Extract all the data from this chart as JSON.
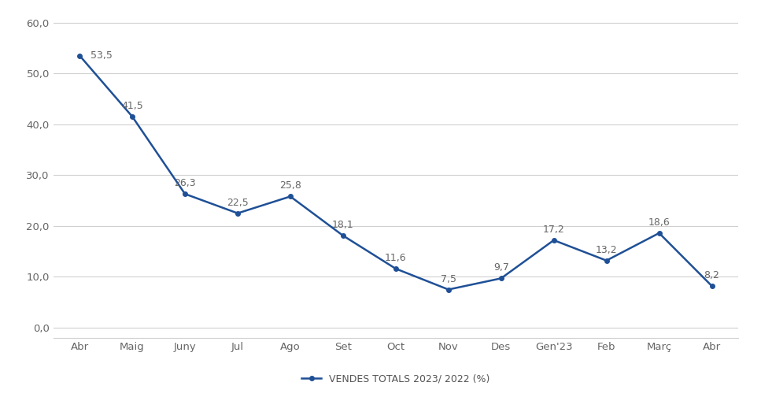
{
  "x_labels": [
    "Abr",
    "Maig",
    "Juny",
    "Jul",
    "Ago",
    "Set",
    "Oct",
    "Nov",
    "Des",
    "Gen'23",
    "Feb",
    "Març",
    "Abr"
  ],
  "y_values": [
    53.5,
    41.5,
    26.3,
    22.5,
    25.8,
    18.1,
    11.6,
    7.5,
    9.7,
    17.2,
    13.2,
    18.6,
    8.2
  ],
  "label_texts": [
    "53,5",
    "41,5",
    "26,3",
    "22,5",
    "25,8",
    "18,1",
    "11,6",
    "7,5",
    "9,7",
    "17,2",
    "13,2",
    "18,6",
    "8,2"
  ],
  "label_offsets_x": [
    10,
    0,
    0,
    0,
    0,
    0,
    0,
    0,
    0,
    0,
    0,
    0,
    0
  ],
  "label_offsets_y": [
    0,
    5,
    5,
    5,
    5,
    5,
    5,
    5,
    5,
    5,
    5,
    5,
    5
  ],
  "label_ha": [
    "left",
    "center",
    "center",
    "center",
    "center",
    "center",
    "center",
    "center",
    "center",
    "center",
    "center",
    "center",
    "center"
  ],
  "label_va": [
    "center",
    "bottom",
    "bottom",
    "bottom",
    "bottom",
    "bottom",
    "bottom",
    "bottom",
    "bottom",
    "bottom",
    "bottom",
    "bottom",
    "bottom"
  ],
  "line_color": "#1f5096",
  "line_width": 1.8,
  "marker": "o",
  "marker_size": 4,
  "ylim": [
    -2,
    62
  ],
  "yticks": [
    0.0,
    10.0,
    20.0,
    30.0,
    40.0,
    50.0,
    60.0
  ],
  "ytick_labels": [
    "0,0",
    "10,0",
    "20,0",
    "30,0",
    "40,0",
    "50,0",
    "60,0"
  ],
  "legend_label": "VENDES TOTALS 2023/ 2022 (%)",
  "background_color": "#ffffff",
  "grid_color": "#d0d0d0",
  "annotation_fontsize": 9,
  "annotation_color": "#666666",
  "tick_fontsize": 9.5,
  "legend_fontsize": 9
}
